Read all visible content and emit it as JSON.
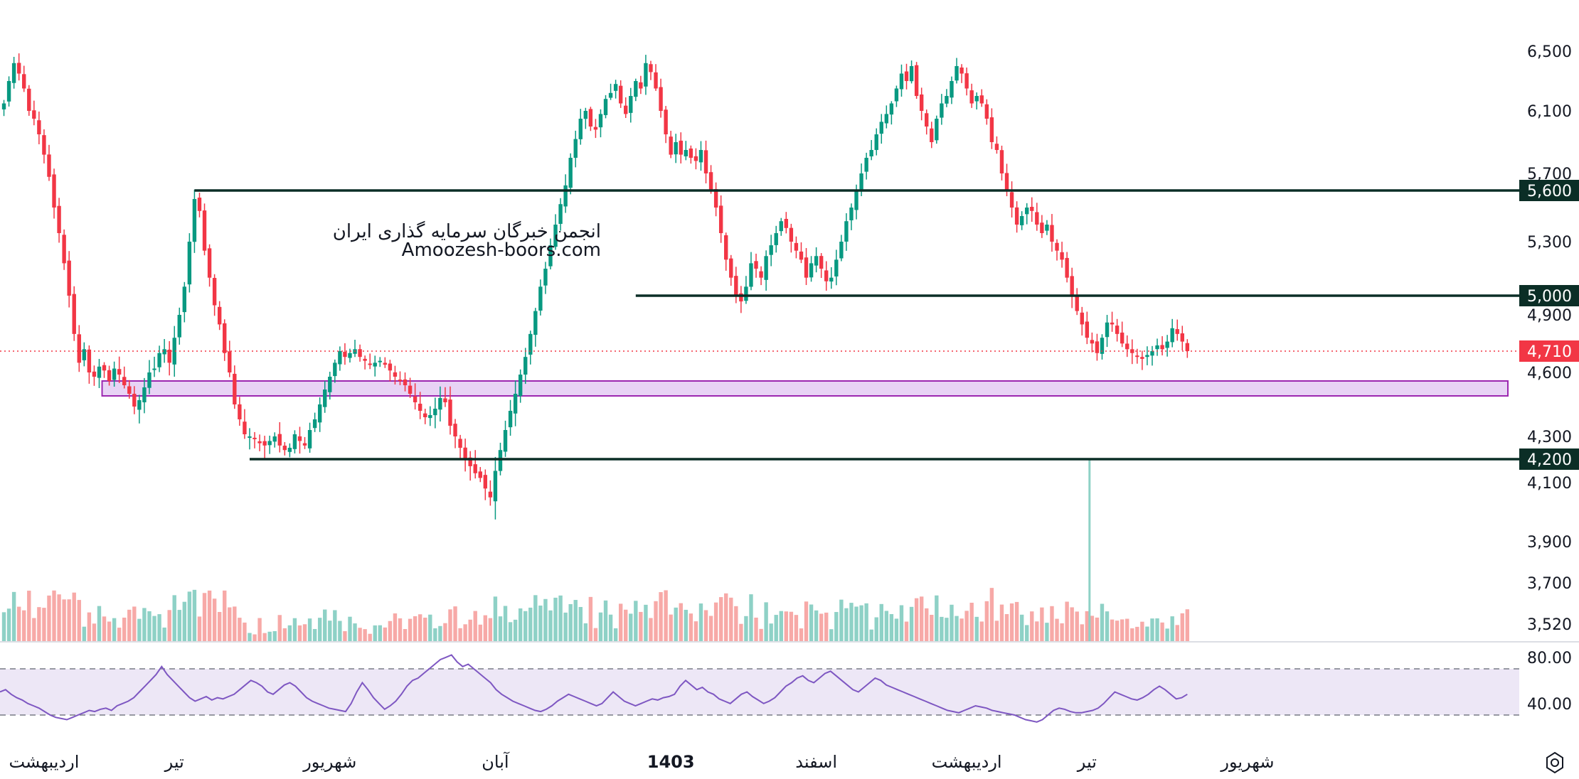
{
  "watermark": {
    "line1": "انجمن خبرگان سرمایه گذاری ایران",
    "line2": "Amoozesh-boors.com"
  },
  "colors": {
    "up": "#089981",
    "down": "#f23645",
    "up_vol": "#8ed1c6",
    "down_vol": "#f7a9a7",
    "level": "#0b2e26",
    "zone_fill": "#e8d3f5",
    "zone_stroke": "#9c27b0",
    "rsi_line": "#7e57c2",
    "rsi_band": "#ede7f6",
    "last_price": "#f23645"
  },
  "chart_data": {
    "type": "candlestick",
    "price_axis": {
      "min": 3520,
      "max": 6500,
      "ticks": [
        "6,500",
        "6,100",
        "5,700",
        "5,300",
        "4,900",
        "4,600",
        "4,300",
        "4,100",
        "3,900",
        "3,700",
        "3,520"
      ]
    },
    "levels": [
      {
        "label": "5,600",
        "value": 5600,
        "from_index": 38
      },
      {
        "label": "5,000",
        "value": 5000,
        "from_index": 126
      },
      {
        "label": "4,200",
        "value": 4200,
        "from_index": 49
      }
    ],
    "support_zone": {
      "low": 4490,
      "high": 4560,
      "from_index": 20
    },
    "last_price": {
      "label": "4,710",
      "value": 4710
    },
    "x_labels": [
      {
        "label": "اردیبهشت",
        "index": 8,
        "bold": false
      },
      {
        "label": "تیر",
        "index": 34,
        "bold": false
      },
      {
        "label": "شهریور",
        "index": 65,
        "bold": false
      },
      {
        "label": "آبان",
        "index": 98,
        "bold": false
      },
      {
        "label": "1403",
        "index": 133,
        "bold": true
      },
      {
        "label": "اسفند",
        "index": 162,
        "bold": false
      },
      {
        "label": "اردیبهشت",
        "index": 192,
        "bold": false
      },
      {
        "label": "تیر",
        "index": 216,
        "bold": false
      },
      {
        "label": "شهریور",
        "index": 248,
        "bold": false
      }
    ],
    "closes": [
      6150,
      6300,
      6420,
      6350,
      6250,
      6100,
      6050,
      5950,
      5820,
      5680,
      5500,
      5350,
      5180,
      5000,
      4800,
      4650,
      4720,
      4600,
      4580,
      4630,
      4610,
      4560,
      4620,
      4590,
      4540,
      4500,
      4440,
      4470,
      4530,
      4600,
      4620,
      4700,
      4720,
      4650,
      4780,
      4900,
      5050,
      5300,
      5550,
      5480,
      5250,
      5100,
      4950,
      4850,
      4700,
      4600,
      4450,
      4380,
      4310,
      4300,
      4290,
      4270,
      4260,
      4280,
      4300,
      4260,
      4240,
      4250,
      4310,
      4280,
      4260,
      4330,
      4380,
      4450,
      4520,
      4580,
      4650,
      4710,
      4680,
      4700,
      4720,
      4680,
      4660,
      4640,
      4650,
      4660,
      4640,
      4610,
      4580,
      4560,
      4540,
      4500,
      4460,
      4420,
      4390,
      4400,
      4430,
      4480,
      4460,
      4350,
      4300,
      4250,
      4200,
      4170,
      4140,
      4120,
      4080,
      4050,
      4150,
      4240,
      4330,
      4420,
      4500,
      4590,
      4680,
      4800,
      4920,
      5050,
      5150,
      5280,
      5400,
      5520,
      5630,
      5800,
      5920,
      6050,
      6100,
      6000,
      5980,
      6080,
      6180,
      6220,
      6280,
      6150,
      6080,
      6200,
      6300,
      6250,
      6420,
      6360,
      6250,
      6100,
      5950,
      5820,
      5900,
      5820,
      5850,
      5800,
      5780,
      5850,
      5700,
      5600,
      5500,
      5350,
      5200,
      5100,
      5000,
      4970,
      5050,
      5180,
      5150,
      5100,
      5220,
      5280,
      5350,
      5420,
      5380,
      5300,
      5250,
      5200,
      5100,
      5180,
      5220,
      5150,
      5080,
      5100,
      5200,
      5300,
      5420,
      5500,
      5600,
      5700,
      5800,
      5850,
      5950,
      6030,
      6080,
      6150,
      6250,
      6350,
      6300,
      6400,
      6200,
      6100,
      6000,
      5900,
      6050,
      6150,
      6200,
      6300,
      6400,
      6350,
      6250,
      6150,
      6200,
      6150,
      6050,
      5900,
      5850,
      5700,
      5600,
      5500,
      5400,
      5450,
      5500,
      5480,
      5400,
      5350,
      5400,
      5300,
      5250,
      5200,
      5100,
      5000,
      4920,
      4850,
      4780,
      4750,
      4700,
      4780,
      4860,
      4850,
      4800,
      4750,
      4720,
      4700,
      4680,
      4670,
      4690,
      4710,
      4740,
      4720,
      4760,
      4830,
      4800,
      4760,
      4710
    ],
    "rsi": {
      "band": [
        30,
        70
      ],
      "ticks": [
        "80.00",
        "40.00"
      ],
      "values": [
        50,
        52,
        48,
        45,
        43,
        40,
        38,
        36,
        33,
        30,
        28,
        27,
        26,
        28,
        30,
        32,
        34,
        33,
        35,
        36,
        34,
        38,
        40,
        42,
        45,
        50,
        55,
        60,
        65,
        72,
        65,
        60,
        55,
        50,
        45,
        42,
        44,
        46,
        43,
        45,
        44,
        46,
        48,
        52,
        56,
        60,
        58,
        55,
        50,
        48,
        52,
        56,
        58,
        55,
        50,
        45,
        42,
        40,
        38,
        36,
        35,
        34,
        33,
        40,
        50,
        58,
        52,
        45,
        40,
        35,
        38,
        42,
        48,
        55,
        60,
        62,
        66,
        70,
        74,
        78,
        80,
        82,
        76,
        72,
        74,
        70,
        66,
        62,
        58,
        52,
        48,
        45,
        42,
        40,
        38,
        36,
        34,
        33,
        35,
        38,
        42,
        45,
        48,
        46,
        44,
        42,
        40,
        38,
        40,
        45,
        50,
        46,
        42,
        40,
        38,
        40,
        42,
        44,
        43,
        45,
        46,
        48,
        55,
        60,
        56,
        52,
        54,
        50,
        48,
        44,
        42,
        40,
        44,
        48,
        50,
        46,
        43,
        40,
        42,
        45,
        50,
        55,
        58,
        62,
        64,
        60,
        58,
        62,
        66,
        68,
        64,
        60,
        56,
        52,
        50,
        54,
        58,
        62,
        60,
        56,
        54,
        52,
        50,
        48,
        46,
        44,
        42,
        40,
        38,
        36,
        34,
        33,
        32,
        34,
        36,
        38,
        37,
        36,
        34,
        33,
        32,
        31,
        30,
        28,
        26,
        25,
        24,
        26,
        30,
        34,
        36,
        35,
        33,
        32,
        32,
        33,
        34,
        36,
        40,
        45,
        50,
        48,
        46,
        44,
        43,
        45,
        48,
        52,
        55,
        52,
        48,
        44,
        45,
        48
      ]
    }
  }
}
